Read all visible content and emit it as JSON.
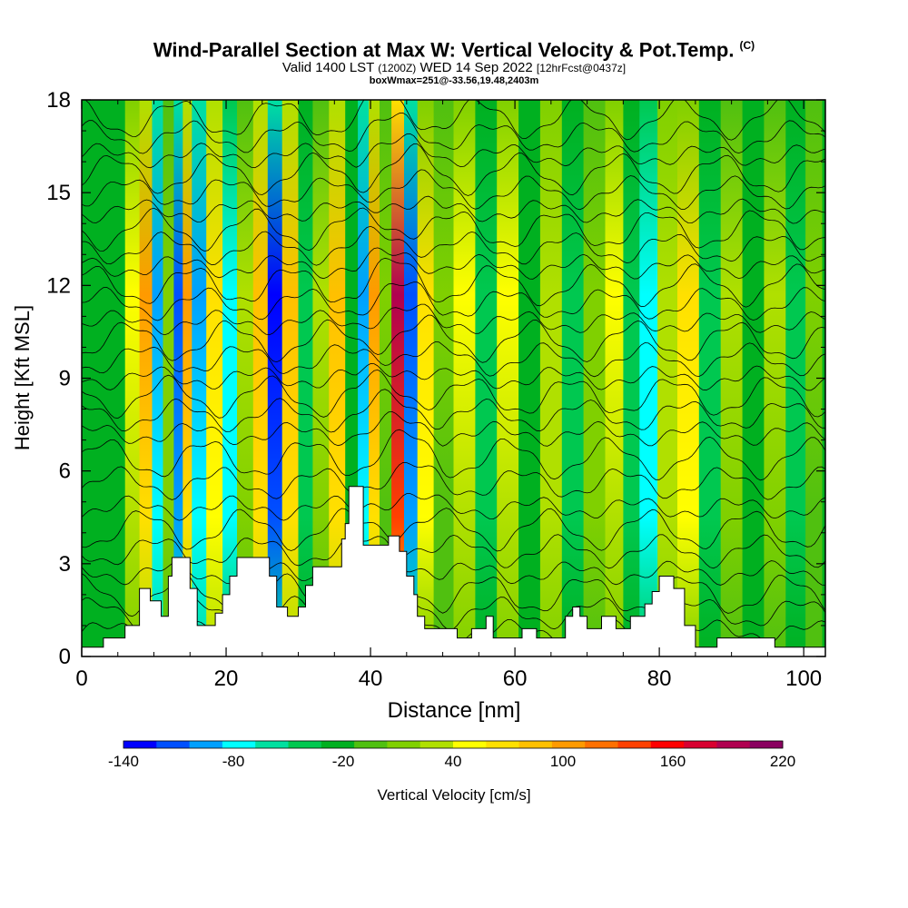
{
  "title": {
    "main": "Wind-Parallel Section at Max W: Vertical Velocity & Pot.Temp.",
    "copyright": "(C)",
    "valid_prefix": "Valid 1400 LST",
    "valid_zulu": "(1200Z)",
    "valid_date": "WED 14 Sep 2022",
    "forecast": "[12hrFcst@0437z]",
    "box_info": "boxWmax=251@-33.56,19.48,2403m"
  },
  "chart_data": {
    "type": "heatmap",
    "xlabel": "Distance [nm]",
    "ylabel": "Height [Kft MSL]",
    "xlim": [
      0,
      103
    ],
    "ylim": [
      0,
      18
    ],
    "x_ticks": [
      "0",
      "20",
      "40",
      "60",
      "80",
      "100"
    ],
    "y_ticks": [
      "0",
      "3",
      "6",
      "9",
      "12",
      "15",
      "18"
    ],
    "grid": false,
    "colorbar": {
      "label": "Vertical Velocity [cm/s]",
      "placement": "bottom",
      "min": -140,
      "max": 220,
      "step": 20,
      "tick_labels": [
        "-140",
        "-80",
        "-20",
        "40",
        "100",
        "160",
        "220"
      ],
      "colors": [
        "#0000ff",
        "#0050ff",
        "#00a0ff",
        "#00ffff",
        "#00e0a0",
        "#00c850",
        "#00b020",
        "#50c010",
        "#80d000",
        "#b0e000",
        "#ffff00",
        "#ffe000",
        "#ffc000",
        "#ff9a00",
        "#ff7000",
        "#ff4000",
        "#ff0000",
        "#d80030",
        "#b00050",
        "#8a0060"
      ]
    },
    "velocity_columns": [
      {
        "x": 7,
        "w": 60
      },
      {
        "x": 9,
        "w": 120
      },
      {
        "x": 10.5,
        "w": -90
      },
      {
        "x": 12,
        "w": 30
      },
      {
        "x": 13.5,
        "w": -110
      },
      {
        "x": 14.5,
        "w": 120
      },
      {
        "x": 16,
        "w": -100
      },
      {
        "x": 18.5,
        "w": 90
      },
      {
        "x": 20.5,
        "w": -80
      },
      {
        "x": 22.5,
        "w": 40
      },
      {
        "x": 25,
        "w": 110
      },
      {
        "x": 26.5,
        "w": -130
      },
      {
        "x": 29,
        "w": 100
      },
      {
        "x": 31,
        "w": -30
      },
      {
        "x": 33,
        "w": 40
      },
      {
        "x": 35.5,
        "w": 100
      },
      {
        "x": 37.5,
        "w": -20
      },
      {
        "x": 39,
        "w": -100
      },
      {
        "x": 40.5,
        "w": 120
      },
      {
        "x": 42,
        "w": 20
      },
      {
        "x": 43.8,
        "w": 220
      },
      {
        "x": 45.5,
        "w": -120
      },
      {
        "x": 47.5,
        "w": 80
      },
      {
        "x": 50,
        "w": 20
      },
      {
        "x": 53,
        "w": 60
      },
      {
        "x": 56,
        "w": -40
      },
      {
        "x": 59,
        "w": 70
      },
      {
        "x": 62,
        "w": -20
      },
      {
        "x": 65,
        "w": 50
      },
      {
        "x": 68,
        "w": -40
      },
      {
        "x": 71,
        "w": 30
      },
      {
        "x": 74,
        "w": 60
      },
      {
        "x": 76,
        "w": -30
      },
      {
        "x": 78.5,
        "w": -80
      },
      {
        "x": 81,
        "w": 50
      },
      {
        "x": 84,
        "w": 80
      },
      {
        "x": 87,
        "w": -40
      },
      {
        "x": 90,
        "w": 40
      },
      {
        "x": 93,
        "w": -20
      },
      {
        "x": 96,
        "w": 40
      },
      {
        "x": 99,
        "w": -40
      },
      {
        "x": 101.5,
        "w": 20
      }
    ],
    "terrain_kft": [
      [
        0,
        0.3
      ],
      [
        3,
        0.3
      ],
      [
        3,
        0.6
      ],
      [
        6,
        0.6
      ],
      [
        6,
        1
      ],
      [
        8,
        1
      ],
      [
        8,
        2.2
      ],
      [
        9.5,
        2.2
      ],
      [
        9.5,
        1.8
      ],
      [
        11,
        1.8
      ],
      [
        11,
        1.3
      ],
      [
        12,
        1.3
      ],
      [
        12,
        2.6
      ],
      [
        12.5,
        2.6
      ],
      [
        12.5,
        3.2
      ],
      [
        15,
        3.2
      ],
      [
        15,
        2.2
      ],
      [
        16,
        2.2
      ],
      [
        16,
        1
      ],
      [
        18.5,
        1
      ],
      [
        18.5,
        1.4
      ],
      [
        19.5,
        1.4
      ],
      [
        19.5,
        2
      ],
      [
        20.5,
        2
      ],
      [
        20.5,
        2.6
      ],
      [
        21.5,
        2.6
      ],
      [
        21.5,
        3.2
      ],
      [
        26,
        3.2
      ],
      [
        26,
        2.6
      ],
      [
        27,
        2.6
      ],
      [
        27,
        1.6
      ],
      [
        28.5,
        1.6
      ],
      [
        28.5,
        1.3
      ],
      [
        30,
        1.3
      ],
      [
        30,
        1.6
      ],
      [
        31,
        1.6
      ],
      [
        31,
        2.3
      ],
      [
        32,
        2.3
      ],
      [
        32,
        2.9
      ],
      [
        36,
        2.9
      ],
      [
        36,
        3.8
      ],
      [
        36.5,
        3.8
      ],
      [
        36.5,
        4.3
      ],
      [
        37,
        4.3
      ],
      [
        37,
        5.5
      ],
      [
        39,
        5.5
      ],
      [
        39,
        3.6
      ],
      [
        42.5,
        3.6
      ],
      [
        42.5,
        3.9
      ],
      [
        44,
        3.9
      ],
      [
        44,
        3.4
      ],
      [
        45,
        3.4
      ],
      [
        45,
        2.6
      ],
      [
        46,
        2.6
      ],
      [
        46,
        2
      ],
      [
        46.5,
        2
      ],
      [
        46.5,
        1.3
      ],
      [
        47.5,
        1.3
      ],
      [
        47.5,
        0.9
      ],
      [
        52,
        0.9
      ],
      [
        52,
        0.6
      ],
      [
        54,
        0.6
      ],
      [
        54,
        0.9
      ],
      [
        56,
        0.9
      ],
      [
        56,
        1.3
      ],
      [
        57,
        1.3
      ],
      [
        57,
        0.6
      ],
      [
        61,
        0.6
      ],
      [
        61,
        0.9
      ],
      [
        63,
        0.9
      ],
      [
        63,
        0.6
      ],
      [
        67,
        0.6
      ],
      [
        67,
        1.3
      ],
      [
        68,
        1.3
      ],
      [
        68,
        1.6
      ],
      [
        69,
        1.6
      ],
      [
        69,
        1.3
      ],
      [
        70,
        1.3
      ],
      [
        70,
        0.9
      ],
      [
        72,
        0.9
      ],
      [
        72,
        1.3
      ],
      [
        74,
        1.3
      ],
      [
        74,
        0.9
      ],
      [
        76,
        0.9
      ],
      [
        76,
        1.3
      ],
      [
        78,
        1.3
      ],
      [
        78,
        1.7
      ],
      [
        79,
        1.7
      ],
      [
        79,
        2.1
      ],
      [
        80,
        2.1
      ],
      [
        80,
        2.6
      ],
      [
        82,
        2.6
      ],
      [
        82,
        2.2
      ],
      [
        83.5,
        2.2
      ],
      [
        83.5,
        1
      ],
      [
        85,
        1
      ],
      [
        85,
        0.3
      ],
      [
        88,
        0.3
      ],
      [
        88,
        0.6
      ],
      [
        96,
        0.6
      ],
      [
        96,
        0.3
      ],
      [
        103,
        0.3
      ]
    ],
    "theta_contour_levels_kft": [
      0.8,
      1.4,
      2.0,
      2.7,
      3.4,
      4.1,
      4.8,
      5.6,
      6.4,
      7.2,
      7.8,
      8.4,
      9.0,
      9.6,
      10.2,
      10.8,
      11.4,
      12.0,
      12.6,
      13.2,
      13.8,
      14.4,
      15.0,
      15.6,
      16.2,
      16.8,
      17.4
    ]
  }
}
